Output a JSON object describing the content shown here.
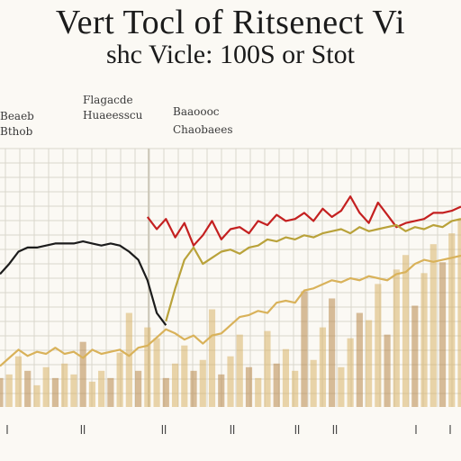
{
  "title_line1": "Vert Tocl of Ritsenect Vi",
  "title_line2": "shc Vicle: 100S or Stot",
  "colors": {
    "background": "#fbf9f4",
    "grid": "#d9d6cc",
    "series_black": "#1c1c1c",
    "series_red": "#c42020",
    "series_olive": "#b9a23a",
    "series_gold": "#d9b25a",
    "bars": "#d8b46a",
    "bars_dark": "#b8894a"
  },
  "chart_data": {
    "type": "line",
    "title": "Vert Tocl of Ritsenect Vi shc Vicle: 100S or Stot",
    "xlabel": "",
    "ylabel": "",
    "grid": true,
    "legend_placement": "top",
    "legend": [
      {
        "text": "Beaeb"
      },
      {
        "text": "Bthob"
      },
      {
        "text": "Flagacde"
      },
      {
        "text": "Huaeesscu"
      },
      {
        "text": "Baaoooc"
      },
      {
        "text": "Chaobaees"
      }
    ],
    "x_tick_labels": [
      "ꟾ",
      "ꟾꟾ",
      "ꟾꟾ",
      "ꟾꟾ",
      "ꟾꟾ",
      "ꟾꟾ",
      "ꟾ",
      "ꟾ"
    ],
    "x": [
      0,
      1,
      2,
      3,
      4,
      5,
      6,
      7,
      8,
      9,
      10,
      11,
      12,
      13,
      14,
      15,
      16,
      17,
      18,
      19,
      20,
      21,
      22,
      23,
      24,
      25,
      26,
      27,
      28,
      29,
      30,
      31,
      32,
      33,
      34,
      35,
      36,
      37,
      38,
      39,
      40,
      41,
      42,
      43,
      44,
      45,
      46,
      47,
      48,
      49,
      50
    ],
    "ylim": [
      0,
      100
    ],
    "series": [
      {
        "color_key": "series_black",
        "values": [
          65,
          70,
          76,
          78,
          78,
          79,
          80,
          80,
          80,
          81,
          80,
          79,
          80,
          79,
          76,
          72,
          62,
          46,
          40,
          null,
          null,
          null,
          null,
          null,
          null,
          null,
          null,
          null,
          null,
          null,
          null,
          null,
          null,
          null,
          null,
          null,
          null,
          null,
          null,
          null,
          null,
          null,
          null,
          null,
          null,
          null,
          null,
          null,
          null,
          null,
          null
        ]
      },
      {
        "color_key": "series_red",
        "values": [
          null,
          null,
          null,
          null,
          null,
          null,
          null,
          null,
          null,
          null,
          null,
          null,
          null,
          null,
          null,
          null,
          93,
          87,
          92,
          83,
          90,
          79,
          84,
          91,
          82,
          87,
          88,
          85,
          91,
          89,
          94,
          91,
          92,
          95,
          91,
          97,
          93,
          96,
          103,
          95,
          90,
          100,
          94,
          88,
          90,
          91,
          92,
          95,
          95,
          96,
          98
        ]
      },
      {
        "color_key": "series_olive",
        "values": [
          null,
          null,
          null,
          null,
          null,
          null,
          null,
          null,
          null,
          null,
          null,
          null,
          null,
          null,
          null,
          null,
          null,
          null,
          42,
          58,
          72,
          78,
          70,
          73,
          76,
          77,
          75,
          78,
          79,
          82,
          81,
          83,
          82,
          84,
          83,
          85,
          86,
          87,
          85,
          88,
          86,
          87,
          88,
          89,
          86,
          88,
          87,
          89,
          88,
          91,
          92
        ]
      },
      {
        "color_key": "series_gold",
        "values": [
          20,
          24,
          28,
          25,
          27,
          26,
          29,
          26,
          27,
          24,
          28,
          26,
          27,
          28,
          25,
          29,
          30,
          34,
          38,
          36,
          33,
          35,
          31,
          35,
          36,
          40,
          44,
          45,
          47,
          46,
          51,
          52,
          51,
          57,
          58,
          60,
          62,
          61,
          63,
          62,
          64,
          63,
          62,
          65,
          66,
          70,
          72,
          71,
          72,
          73,
          74
        ]
      }
    ],
    "bars_values": [
      8,
      9,
      14,
      10,
      6,
      11,
      8,
      12,
      9,
      18,
      7,
      10,
      8,
      15,
      26,
      10,
      22,
      19,
      8,
      12,
      17,
      10,
      13,
      27,
      9,
      14,
      20,
      11,
      8,
      21,
      12,
      16,
      10,
      32,
      13,
      22,
      30,
      11,
      19,
      26,
      24,
      34,
      20,
      38,
      42,
      28,
      37,
      45,
      40,
      48,
      52
    ]
  }
}
